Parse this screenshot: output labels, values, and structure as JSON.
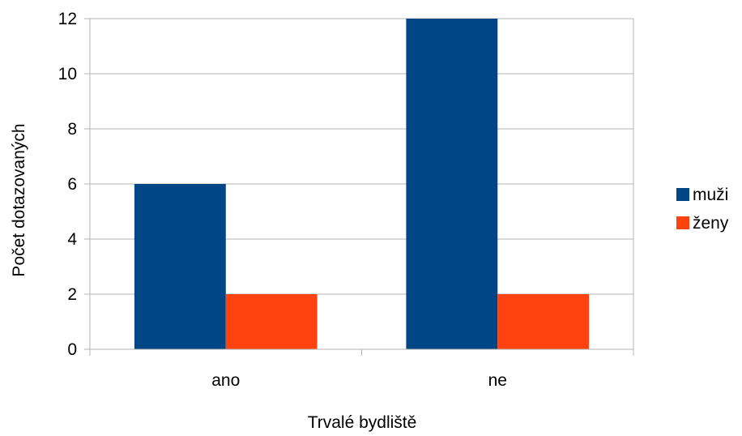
{
  "chart_data": {
    "type": "bar",
    "title": "",
    "xlabel": "Trvalé bydliště",
    "ylabel": "Počet dotazovaných",
    "categories": [
      "ano",
      "ne"
    ],
    "series": [
      {
        "name": "muži",
        "color": "#004586",
        "values": [
          6,
          12
        ]
      },
      {
        "name": "ženy",
        "color": "#ff420e",
        "values": [
          2,
          2
        ]
      }
    ],
    "ylim": [
      0,
      12
    ],
    "yticks": [
      0,
      2,
      4,
      6,
      8,
      10,
      12
    ],
    "grid": true,
    "legend_position": "right"
  }
}
